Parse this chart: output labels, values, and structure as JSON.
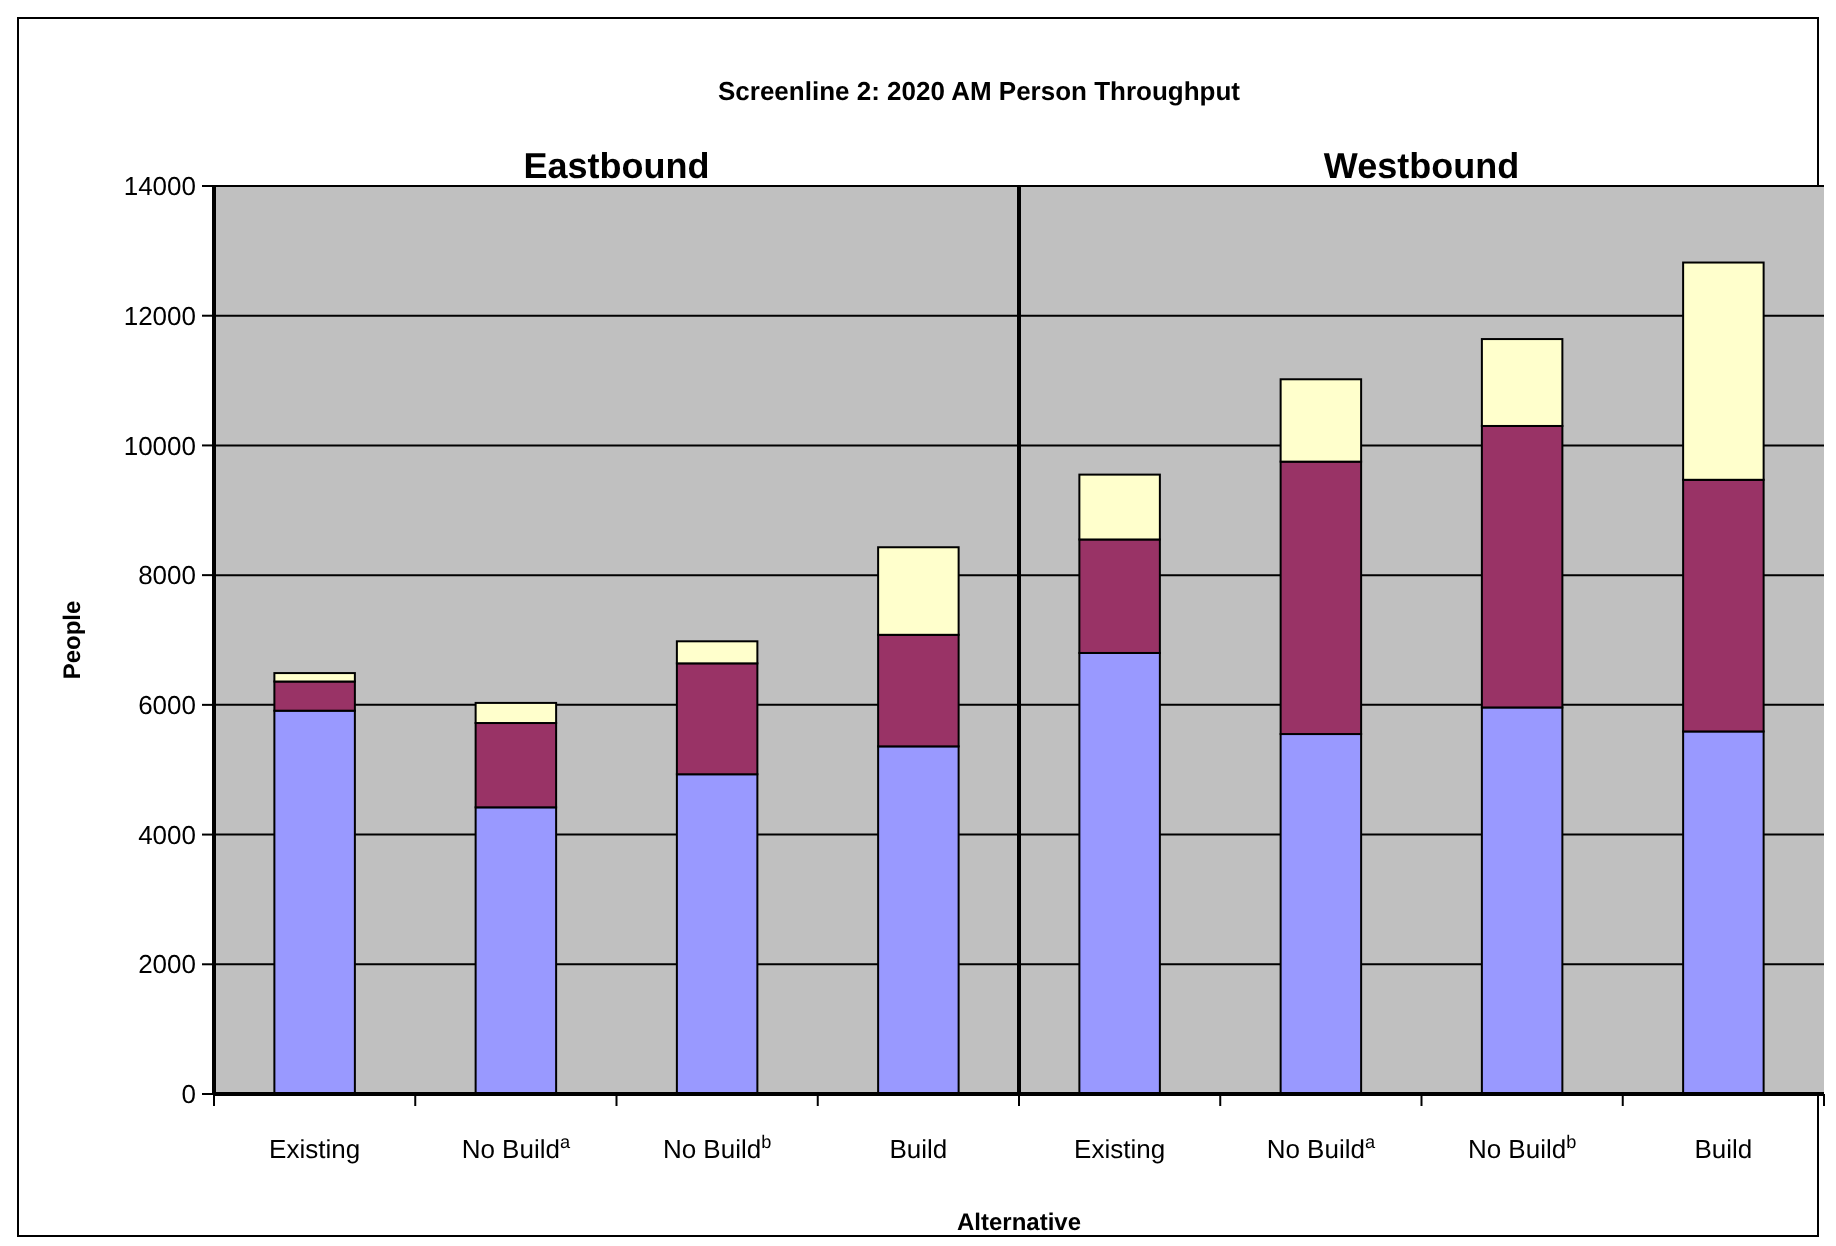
{
  "chart_data": [
    {
      "type": "bar",
      "stacked": true,
      "title": "Screenline 2: 2020 AM Person Throughput",
      "subtitle": "Eastbound",
      "xlabel": "Alternative",
      "ylabel": "People",
      "categories": [
        "Existing",
        "No Build$^{a}$",
        "No Build$^{b}$",
        "Build"
      ],
      "series": [
        {
          "color": "#9999ff",
          "values": [
            5910,
            4420,
            4930,
            5360
          ]
        },
        {
          "color": "#993366",
          "values": [
            450,
            1300,
            1710,
            1720
          ]
        },
        {
          "color": "#ffffcc",
          "values": [
            130,
            310,
            340,
            1350
          ]
        }
      ],
      "ylim": [
        0,
        14000
      ],
      "yticks": [
        0,
        2000,
        4000,
        6000,
        8000,
        10000,
        12000,
        14000
      ],
      "grid": "y"
    },
    {
      "type": "bar",
      "stacked": true,
      "title": "Westbound",
      "categories": [
        "Existing",
        "No Build$^{a}$",
        "No Build$^{b}$",
        "Build"
      ],
      "series": [
        {
          "color": "#9999ff",
          "values": [
            6800,
            5550,
            5960,
            5590
          ]
        },
        {
          "color": "#993366",
          "values": [
            1750,
            4200,
            4340,
            3880
          ]
        },
        {
          "color": "#ffffcc",
          "values": [
            1000,
            1270,
            1340,
            3350
          ]
        }
      ],
      "ylim": [
        0,
        14000
      ],
      "yticks": [
        0,
        2000,
        4000,
        6000,
        8000,
        10000,
        12000,
        14000
      ],
      "grid": "y",
      "tick_labels": "x"
    }
  ]
}
